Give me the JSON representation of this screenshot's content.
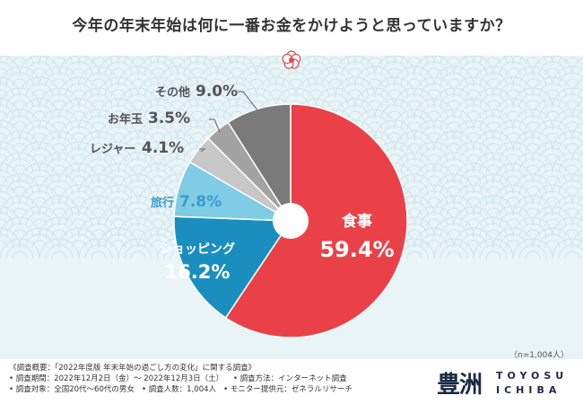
{
  "title": "今年の年末年始は何に一番お金をかけようと思っていますか？",
  "sample_note": "（n=1,004人）",
  "notes": [
    "《調査概要：「2022年度版 年末年始の過ごし方の変化」に関する調査》",
    "• 調査期間：2022年12月2日（金）〜 2022年12月3日（土）",
    "• 調査方法：インターネット調査",
    "• 調査対象：全国20代〜60代の男女",
    "• 調査人数：1,004人",
    "• モニター提供元：ゼネラルリサーチ"
  ],
  "logo": {
    "kanji": "豊洲",
    "line1": "TOYOSU",
    "line2": "ICHIBA"
  },
  "colors": {
    "background_band": "#e9f4f7",
    "wave": "#d3e7ee",
    "label_text": "#555555",
    "leader_line": "#777777"
  },
  "chart_data": {
    "type": "pie",
    "title": "今年の年末年始は何に一番お金をかけようと思っていますか？",
    "unit": "%",
    "start_angle_deg": 0,
    "direction": "clockwise",
    "slices": [
      {
        "label": "食事",
        "value": 59.4,
        "value_text": "59.4%",
        "color": "#ea4148"
      },
      {
        "label": "ショッピング",
        "value": 16.2,
        "value_text": "16.2%",
        "color": "#1a8fbf"
      },
      {
        "label": "旅行",
        "value": 7.8,
        "value_text": "7.8%",
        "color": "#7fcce5"
      },
      {
        "label": "レジャー",
        "value": 4.1,
        "value_text": "4.1%",
        "color": "#c7c7c7"
      },
      {
        "label": "お年玉",
        "value": 3.5,
        "value_text": "3.5%",
        "color": "#a3a3a3"
      },
      {
        "label": "その他",
        "value": 9.0,
        "value_text": "9.0%",
        "color": "#7a7a7a"
      }
    ]
  }
}
